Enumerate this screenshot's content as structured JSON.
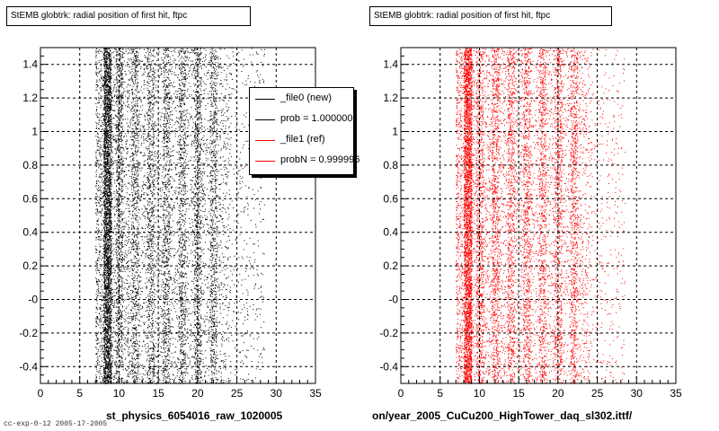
{
  "chart_data": [
    {
      "type": "scatter",
      "title": "StEMB globtrk: radial position of first hit, ftpc",
      "xlabel": "st_physics_6054016_raw_1020005",
      "ylabel": "",
      "xlim": [
        0,
        35
      ],
      "ylim": [
        -0.5,
        1.5
      ],
      "x_ticks": [
        "0",
        "5",
        "10",
        "15",
        "20",
        "25",
        "30",
        "35"
      ],
      "y_ticks": [
        "-0.4",
        "-0.2",
        "-0",
        "0.2",
        "0.4",
        "0.6",
        "0.8",
        "1",
        "1.2",
        "1.4"
      ],
      "grid": true,
      "marker_color": "#000000",
      "distribution": {
        "x_min": 7.0,
        "x_max": 28.5,
        "dense_band_x": [
          8.0,
          9.0
        ],
        "stripe_x": [
          10,
          12,
          14,
          16,
          18,
          20,
          22
        ],
        "uniform_in_y": true
      },
      "series": [
        {
          "name": "_file0 (new)",
          "color": "#000000"
        }
      ]
    },
    {
      "type": "scatter",
      "title": "StEMB globtrk: radial position of first hit, ftpc",
      "xlabel": "on/year_2005_CuCu200_HighTower_daq_sl302.ittf/",
      "ylabel": "",
      "xlim": [
        0,
        35
      ],
      "ylim": [
        -0.5,
        1.5
      ],
      "x_ticks": [
        "0",
        "5",
        "10",
        "15",
        "20",
        "25",
        "30",
        "35"
      ],
      "y_ticks": [
        "-0.4",
        "-0.2",
        "-0",
        "0.2",
        "0.4",
        "0.6",
        "0.8",
        "1",
        "1.2",
        "1.4"
      ],
      "grid": true,
      "marker_color": "#ff0000",
      "distribution": {
        "x_min": 7.0,
        "x_max": 28.5,
        "dense_band_x": [
          8.0,
          9.0
        ],
        "stripe_x": [
          10,
          12,
          14,
          16,
          18,
          20,
          22
        ],
        "uniform_in_y": true
      },
      "series": [
        {
          "name": "_file1 (ref)",
          "color": "#ff0000"
        }
      ]
    }
  ],
  "legend": {
    "placement": "top-right of left plot",
    "entries": [
      {
        "label": "_file0 (new)",
        "color": "#000000"
      },
      {
        "label": "prob = 1.000000",
        "color": "#000000"
      },
      {
        "label": "_file1 (ref)",
        "color": "#ff0000"
      },
      {
        "label": "probN = 0.999996",
        "color": "#ff0000"
      }
    ]
  },
  "corner_text": "cc-exp-0-12 2005-17-2005"
}
